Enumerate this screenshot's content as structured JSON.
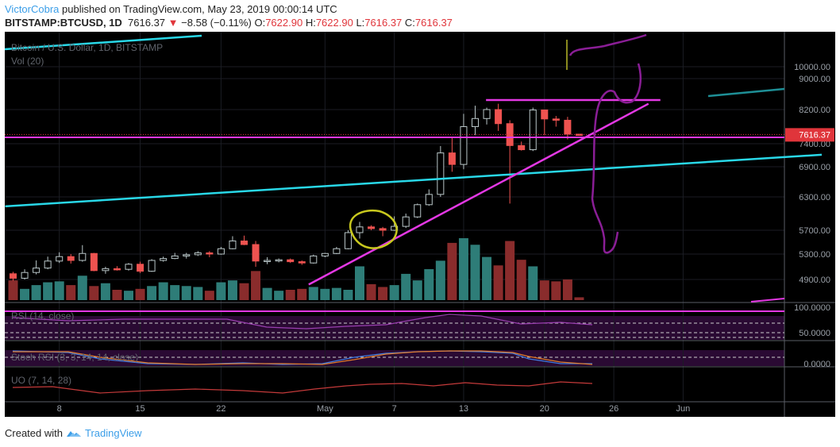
{
  "header": {
    "author": "VictorCobra",
    "published_text": "published on TradingView.com, May 23, 2019 00:00:14 UTC",
    "symbol": "BITSTAMP:BTCUSD, 1D",
    "last": "7616.37",
    "change_arrow": "▼",
    "change": "−8.58 (−0.11%)",
    "o_label": "O:",
    "o_value": "7622.90",
    "h_label": "H:",
    "h_value": "7622.90",
    "l_label": "L:",
    "l_value": "7616.37",
    "c_label": "C:",
    "c_value": "7616.37"
  },
  "footer": {
    "created_with": "Created with",
    "brand": "TradingView",
    "logo_icon": "tradingview-logo-icon"
  },
  "colors": {
    "background": "#000000",
    "up": "#26a69a",
    "down": "#ef5350",
    "vol_up": "#2e7d78",
    "vol_down": "#8a2c2c",
    "trendline_cyan": "#29d8e8",
    "magenta": "#e438e4",
    "annotation_yellow": "#c8c81e",
    "annotation_purple": "#8a1e96",
    "price_tag": "#e0353b",
    "axis_text": "#9aa0a8"
  },
  "chart_data": {
    "type": "candlestick",
    "title": "Bitcoin / U.S. Dollar, 1D, BITSTAMP",
    "volume_label": "Vol (20)",
    "y_axis_ticks": [
      "10000.00",
      "9000.00",
      "8200.00",
      "7400.00",
      "6900.00",
      "6300.00",
      "5700.00",
      "5300.00",
      "4900.00"
    ],
    "last_price_tag": "7616.37",
    "x_ticks": [
      {
        "label": "8",
        "index": 4
      },
      {
        "label": "15",
        "index": 11
      },
      {
        "label": "22",
        "index": 18
      },
      {
        "label": "May",
        "index": 27
      },
      {
        "label": "7",
        "index": 33
      },
      {
        "label": "13",
        "index": 39
      },
      {
        "label": "20",
        "index": 46
      },
      {
        "label": "26",
        "index": 52
      },
      {
        "label": "Jun",
        "index": 58
      }
    ],
    "ohlc": [
      {
        "date": "2019-04-04",
        "o": 4990,
        "h": 5020,
        "l": 4880,
        "c": 4920
      },
      {
        "date": "2019-04-05",
        "o": 4920,
        "h": 5060,
        "l": 4900,
        "c": 5010
      },
      {
        "date": "2019-04-06",
        "o": 5010,
        "h": 5200,
        "l": 4980,
        "c": 5080
      },
      {
        "date": "2019-04-07",
        "o": 5080,
        "h": 5260,
        "l": 5060,
        "c": 5190
      },
      {
        "date": "2019-04-08",
        "o": 5190,
        "h": 5330,
        "l": 5160,
        "c": 5260
      },
      {
        "date": "2019-04-09",
        "o": 5260,
        "h": 5300,
        "l": 5150,
        "c": 5200
      },
      {
        "date": "2019-04-10",
        "o": 5200,
        "h": 5450,
        "l": 5180,
        "c": 5310
      },
      {
        "date": "2019-04-11",
        "o": 5310,
        "h": 5320,
        "l": 5030,
        "c": 5040
      },
      {
        "date": "2019-04-12",
        "o": 5040,
        "h": 5100,
        "l": 4990,
        "c": 5070
      },
      {
        "date": "2019-04-13",
        "o": 5070,
        "h": 5110,
        "l": 5040,
        "c": 5060
      },
      {
        "date": "2019-04-14",
        "o": 5060,
        "h": 5160,
        "l": 5040,
        "c": 5140
      },
      {
        "date": "2019-04-15",
        "o": 5140,
        "h": 5180,
        "l": 5000,
        "c": 5030
      },
      {
        "date": "2019-04-16",
        "o": 5030,
        "h": 5220,
        "l": 5020,
        "c": 5200
      },
      {
        "date": "2019-04-17",
        "o": 5200,
        "h": 5260,
        "l": 5180,
        "c": 5230
      },
      {
        "date": "2019-04-18",
        "o": 5230,
        "h": 5320,
        "l": 5220,
        "c": 5270
      },
      {
        "date": "2019-04-19",
        "o": 5270,
        "h": 5320,
        "l": 5230,
        "c": 5290
      },
      {
        "date": "2019-04-20",
        "o": 5290,
        "h": 5350,
        "l": 5270,
        "c": 5320
      },
      {
        "date": "2019-04-21",
        "o": 5320,
        "h": 5350,
        "l": 5250,
        "c": 5300
      },
      {
        "date": "2019-04-22",
        "o": 5300,
        "h": 5420,
        "l": 5290,
        "c": 5390
      },
      {
        "date": "2019-04-23",
        "o": 5390,
        "h": 5600,
        "l": 5380,
        "c": 5520
      },
      {
        "date": "2019-04-24",
        "o": 5520,
        "h": 5610,
        "l": 5450,
        "c": 5460
      },
      {
        "date": "2019-04-25",
        "o": 5460,
        "h": 5520,
        "l": 5100,
        "c": 5190
      },
      {
        "date": "2019-04-26",
        "o": 5190,
        "h": 5250,
        "l": 5140,
        "c": 5200
      },
      {
        "date": "2019-04-27",
        "o": 5200,
        "h": 5230,
        "l": 5170,
        "c": 5210
      },
      {
        "date": "2019-04-28",
        "o": 5210,
        "h": 5230,
        "l": 5160,
        "c": 5180
      },
      {
        "date": "2019-04-29",
        "o": 5180,
        "h": 5200,
        "l": 5130,
        "c": 5160
      },
      {
        "date": "2019-04-30",
        "o": 5160,
        "h": 5290,
        "l": 5150,
        "c": 5270
      },
      {
        "date": "2019-05-01",
        "o": 5270,
        "h": 5320,
        "l": 5250,
        "c": 5310
      },
      {
        "date": "2019-05-02",
        "o": 5310,
        "h": 5420,
        "l": 5300,
        "c": 5390
      },
      {
        "date": "2019-05-03",
        "o": 5390,
        "h": 5700,
        "l": 5380,
        "c": 5660
      },
      {
        "date": "2019-05-04",
        "o": 5660,
        "h": 5850,
        "l": 5560,
        "c": 5760
      },
      {
        "date": "2019-05-05",
        "o": 5760,
        "h": 5790,
        "l": 5700,
        "c": 5730
      },
      {
        "date": "2019-05-06",
        "o": 5730,
        "h": 5760,
        "l": 5600,
        "c": 5700
      },
      {
        "date": "2019-05-07",
        "o": 5700,
        "h": 5950,
        "l": 5690,
        "c": 5770
      },
      {
        "date": "2019-05-08",
        "o": 5770,
        "h": 6000,
        "l": 5740,
        "c": 5940
      },
      {
        "date": "2019-05-09",
        "o": 5940,
        "h": 6180,
        "l": 5920,
        "c": 6160
      },
      {
        "date": "2019-05-10",
        "o": 6160,
        "h": 6450,
        "l": 6140,
        "c": 6350
      },
      {
        "date": "2019-05-11",
        "o": 6350,
        "h": 7350,
        "l": 6300,
        "c": 7200
      },
      {
        "date": "2019-05-12",
        "o": 7200,
        "h": 7550,
        "l": 6800,
        "c": 6950
      },
      {
        "date": "2019-05-13",
        "o": 6950,
        "h": 8100,
        "l": 6850,
        "c": 7800
      },
      {
        "date": "2019-05-14",
        "o": 7800,
        "h": 8300,
        "l": 7600,
        "c": 7990
      },
      {
        "date": "2019-05-15",
        "o": 7990,
        "h": 8250,
        "l": 7850,
        "c": 8200
      },
      {
        "date": "2019-05-16",
        "o": 8200,
        "h": 8350,
        "l": 7700,
        "c": 7870
      },
      {
        "date": "2019-05-17",
        "o": 7870,
        "h": 7950,
        "l": 6180,
        "c": 7360
      },
      {
        "date": "2019-05-18",
        "o": 7360,
        "h": 7450,
        "l": 7250,
        "c": 7270
      },
      {
        "date": "2019-05-19",
        "o": 7270,
        "h": 8250,
        "l": 7240,
        "c": 8190
      },
      {
        "date": "2019-05-20",
        "o": 8190,
        "h": 8200,
        "l": 7600,
        "c": 7980
      },
      {
        "date": "2019-05-21",
        "o": 7980,
        "h": 8050,
        "l": 7800,
        "c": 7950
      },
      {
        "date": "2019-05-22",
        "o": 7950,
        "h": 8030,
        "l": 7500,
        "c": 7625
      },
      {
        "date": "2019-05-23",
        "o": 7622.9,
        "h": 7622.9,
        "l": 7616.37,
        "c": 7616.37
      }
    ],
    "volume": [
      2.1,
      1.2,
      1.6,
      1.9,
      2.0,
      1.6,
      2.6,
      1.5,
      1.8,
      1.1,
      1.0,
      1.2,
      1.5,
      1.9,
      1.6,
      1.5,
      1.4,
      1.0,
      1.9,
      2.1,
      1.8,
      3.1,
      1.3,
      1.0,
      1.1,
      1.2,
      1.4,
      1.2,
      1.3,
      1.1,
      3.6,
      1.7,
      1.4,
      1.6,
      2.8,
      2.1,
      3.3,
      4.2,
      6.1,
      6.6,
      5.9,
      4.6,
      3.7,
      6.3,
      4.3,
      3.6,
      2.1,
      2.0,
      2.2,
      0.3
    ],
    "indicators": [
      {
        "name": "RSI",
        "label": "RSI (14, close)",
        "levels": [
          "100.0000",
          "50.0000"
        ]
      },
      {
        "name": "StochRSI",
        "label": "Stoch RSI (3, 3, 14, 14, close)",
        "levels": [
          "0.0000"
        ]
      },
      {
        "name": "UO",
        "label": "UO (7, 14, 28)"
      }
    ],
    "annotations": [
      {
        "kind": "horizontal",
        "name": "support-line",
        "price": 7550,
        "color": "magenta"
      },
      {
        "kind": "segment",
        "name": "resistance-top-line",
        "from": [
          43,
          8420
        ],
        "to": [
          55,
          8450
        ],
        "color": "magenta"
      },
      {
        "kind": "trendline",
        "name": "rising-trendline",
        "from": [
          26,
          4820
        ],
        "to": [
          55,
          8350
        ],
        "color": "magenta"
      },
      {
        "kind": "trendline",
        "name": "long-term-channel-line",
        "from": [
          0,
          6130
        ],
        "to": [
          70,
          7160
        ],
        "color": "cyan"
      },
      {
        "kind": "circle",
        "name": "circled-candles",
        "color": "yellow"
      },
      {
        "kind": "freehand",
        "name": "projection-path",
        "color": "purple"
      }
    ]
  }
}
